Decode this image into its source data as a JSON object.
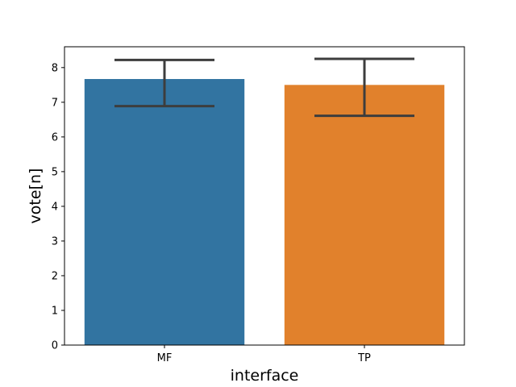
{
  "chart_data": {
    "type": "bar",
    "title": "",
    "xlabel": "interface",
    "ylabel": "vote[n]",
    "categories": [
      "MF",
      "TP"
    ],
    "values": [
      7.67,
      7.5
    ],
    "error_low": [
      6.89,
      6.61
    ],
    "error_high": [
      8.22,
      8.25
    ],
    "colors": [
      "#3274a1",
      "#e1812c"
    ],
    "error_color": "#3d3d3d",
    "ylim": [
      0,
      8.6
    ],
    "yticks": [
      0,
      1,
      2,
      3,
      4,
      5,
      6,
      7,
      8
    ],
    "grid": false,
    "legend": "none"
  }
}
